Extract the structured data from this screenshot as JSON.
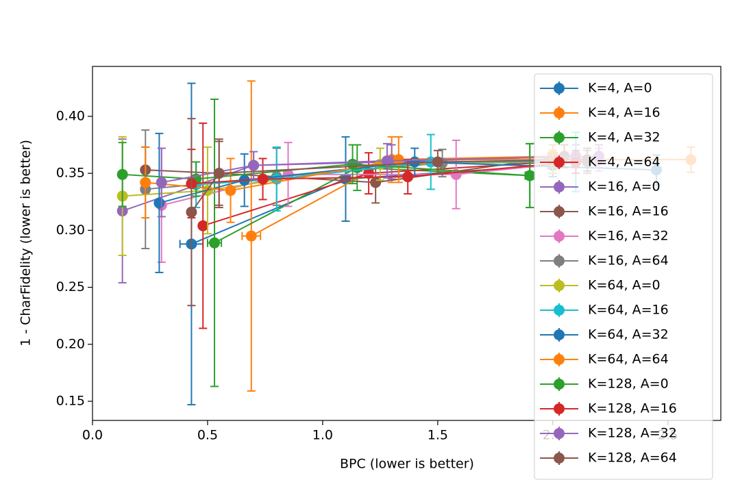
{
  "chart_data": {
    "type": "errorbar",
    "xlabel": "BPC (lower is better)",
    "ylabel": "1 - CharFidelity (lower is better)",
    "xlim": [
      0,
      2.73
    ],
    "ylim": [
      0.1332,
      0.4438
    ],
    "xticks": [
      {
        "value": 0,
        "label": "0.0"
      },
      0.5,
      {
        "value": 1,
        "label": "1.0"
      },
      1.5,
      {
        "value": 2,
        "label": "2.0"
      },
      2.5
    ],
    "yticks": [
      0.15,
      {
        "value": 0.2,
        "label": "0.20"
      },
      0.25,
      {
        "value": 0.3,
        "label": "0.30"
      },
      0.35,
      {
        "value": 0.4,
        "label": "0.40"
      }
    ],
    "legend": "upper right",
    "series": [
      {
        "name": "K=4, A=0",
        "color": "#1f77b4",
        "x": [
          0.43,
          1.1,
          2.0
        ],
        "values": [
          0.288,
          0.345,
          0.357
        ],
        "yerr": [
          0.141,
          0.037,
          0.01
        ],
        "xerr": [
          0.05,
          0.02,
          0.02
        ]
      },
      {
        "name": "K=4, A=16",
        "color": "#ff7f0e",
        "x": [
          0.69,
          1.3,
          2.0
        ],
        "values": [
          0.295,
          0.362,
          0.365
        ],
        "yerr": [
          0.136,
          0.02,
          0.01
        ],
        "xerr": [
          0.04,
          0.02,
          0.02
        ]
      },
      {
        "name": "K=4, A=32",
        "color": "#2ca02c",
        "x": [
          0.53,
          1.15,
          1.9
        ],
        "values": [
          0.289,
          0.355,
          0.348
        ],
        "yerr": [
          0.126,
          0.02,
          0.028
        ],
        "xerr": [
          0.03,
          0.02,
          0.02
        ]
      },
      {
        "name": "K=4, A=64",
        "color": "#d62728",
        "x": [
          0.48,
          1.2,
          2.0
        ],
        "values": [
          0.304,
          0.35,
          0.36
        ],
        "yerr": [
          0.09,
          0.018,
          0.01
        ]
      },
      {
        "name": "K=16, A=0",
        "color": "#9467bd",
        "x": [
          0.13,
          0.7,
          1.3,
          2.1
        ],
        "values": [
          0.317,
          0.357,
          0.36,
          0.365
        ],
        "yerr": [
          0.063,
          0.012,
          0.015,
          0.01
        ]
      },
      {
        "name": "K=16, A=16",
        "color": "#8c564b",
        "x": [
          0.23,
          0.55,
          1.23,
          2.05
        ],
        "values": [
          0.353,
          0.35,
          0.342,
          0.365
        ],
        "yerr": [
          0.02,
          0.03,
          0.018,
          0.01
        ]
      },
      {
        "name": "K=16, A=32",
        "color": "#e377c2",
        "x": [
          0.3,
          0.85,
          1.58,
          2.2
        ],
        "values": [
          0.322,
          0.349,
          0.349,
          0.362
        ],
        "yerr": [
          0.05,
          0.028,
          0.03,
          0.01
        ]
      },
      {
        "name": "K=16, A=64",
        "color": "#7f7f7f",
        "x": [
          0.23,
          0.8,
          1.52,
          2.15
        ],
        "values": [
          0.336,
          0.347,
          0.359,
          0.36
        ],
        "yerr": [
          0.052,
          0.025,
          0.012,
          0.01
        ]
      },
      {
        "name": "K=64, A=0",
        "color": "#bcbd22",
        "x": [
          0.13,
          0.5,
          1.25,
          2.0
        ],
        "values": [
          0.33,
          0.335,
          0.358,
          0.36
        ],
        "yerr": [
          0.052,
          0.038,
          0.014,
          0.01
        ]
      },
      {
        "name": "K=64, A=16",
        "color": "#17becf",
        "x": [
          0.45,
          0.8,
          1.47,
          2.1
        ],
        "values": [
          0.34,
          0.345,
          0.36,
          0.36
        ],
        "yerr": [
          0.02,
          0.028,
          0.024,
          0.026
        ]
      },
      {
        "name": "K=64, A=32",
        "color": "#1f77b4",
        "x": [
          0.29,
          0.66,
          1.4,
          2.45
        ],
        "values": [
          0.324,
          0.344,
          0.36,
          0.353
        ],
        "yerr": [
          0.061,
          0.023,
          0.012,
          0.013
        ]
      },
      {
        "name": "K=64, A=64",
        "color": "#ff7f0e",
        "x": [
          0.23,
          0.6,
          1.33,
          2.6
        ],
        "values": [
          0.342,
          0.335,
          0.362,
          0.362
        ],
        "yerr": [
          0.031,
          0.028,
          0.02,
          0.011
        ]
      },
      {
        "name": "K=128, A=0",
        "color": "#2ca02c",
        "x": [
          0.13,
          0.45,
          1.13,
          1.9
        ],
        "values": [
          0.349,
          0.345,
          0.358,
          0.348
        ],
        "yerr": [
          0.028,
          0.015,
          0.017,
          0.028
        ]
      },
      {
        "name": "K=128, A=16",
        "color": "#d62728",
        "x": [
          0.43,
          0.74,
          1.37,
          2.1
        ],
        "values": [
          0.341,
          0.345,
          0.347,
          0.36
        ],
        "yerr": [
          0.03,
          0.018,
          0.015,
          0.01
        ]
      },
      {
        "name": "K=128, A=32",
        "color": "#9467bd",
        "x": [
          0.3,
          0.7,
          1.28,
          2.2
        ],
        "values": [
          0.342,
          0.357,
          0.361,
          0.365
        ],
        "yerr": [
          0.03,
          0.012,
          0.015,
          0.01
        ]
      },
      {
        "name": "K=128, A=64",
        "color": "#8c564b",
        "x": [
          0.43,
          0.55,
          1.5,
          2.15
        ],
        "values": [
          0.316,
          0.35,
          0.36,
          0.362
        ],
        "yerr": [
          0.082,
          0.028,
          0.01,
          0.01
        ]
      }
    ]
  }
}
